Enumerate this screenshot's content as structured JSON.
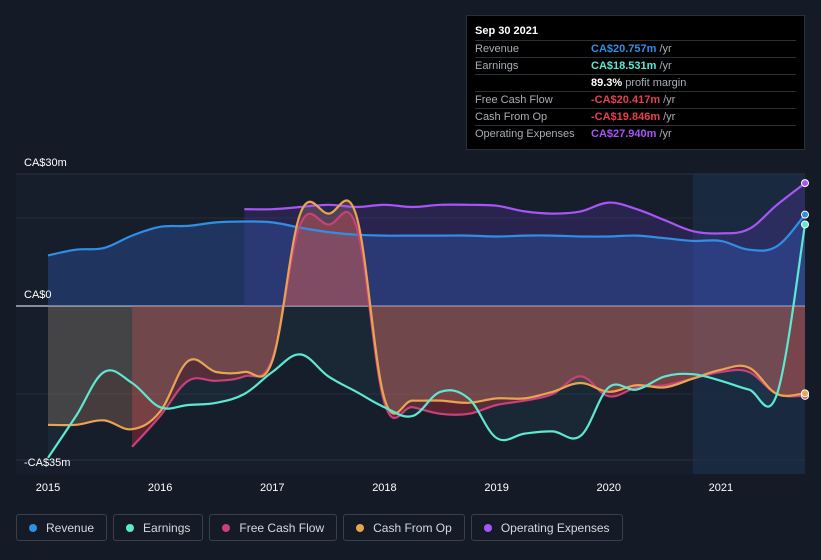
{
  "tooltip": {
    "date": "Sep 30 2021",
    "rows": [
      {
        "label": "Revenue",
        "value": "CA$20.757m",
        "unit": "/yr",
        "color": "#2f8fe6"
      },
      {
        "label": "Earnings",
        "value": "CA$18.531m",
        "unit": "/yr",
        "color": "#5ee8d0"
      },
      {
        "label": "",
        "value": "89.3%",
        "unit": "profit margin",
        "color": "#ffffff"
      },
      {
        "label": "Free Cash Flow",
        "value": "-CA$20.417m",
        "unit": "/yr",
        "color": "#e6404e"
      },
      {
        "label": "Cash From Op",
        "value": "-CA$19.846m",
        "unit": "/yr",
        "color": "#e6404e"
      },
      {
        "label": "Operating Expenses",
        "value": "CA$27.940m",
        "unit": "/yr",
        "color": "#a855f7"
      }
    ]
  },
  "legend": [
    {
      "label": "Revenue",
      "color": "#2f8fe6"
    },
    {
      "label": "Earnings",
      "color": "#5ee8d0"
    },
    {
      "label": "Free Cash Flow",
      "color": "#c8417a"
    },
    {
      "label": "Cash From Op",
      "color": "#e9a452"
    },
    {
      "label": "Operating Expenses",
      "color": "#a855f7"
    }
  ],
  "chart_data": {
    "type": "line",
    "y_labels": [
      {
        "text": "CA$30m",
        "value": 30
      },
      {
        "text": "CA$0",
        "value": 0
      },
      {
        "text": "-CA$35m",
        "value": -35
      }
    ],
    "ylim": [
      -35,
      30
    ],
    "xlim": [
      2015,
      2021.75
    ],
    "x_ticks": [
      "2015",
      "2016",
      "2017",
      "2018",
      "2019",
      "2020",
      "2021"
    ],
    "grid": true,
    "series": [
      {
        "name": "Revenue",
        "color": "#2f8fe6",
        "x": [
          2015.0,
          2015.25,
          2015.5,
          2015.75,
          2016.0,
          2016.25,
          2016.5,
          2016.75,
          2017.0,
          2017.25,
          2017.5,
          2017.75,
          2018.0,
          2018.25,
          2018.5,
          2018.75,
          2019.0,
          2019.25,
          2019.5,
          2019.75,
          2020.0,
          2020.25,
          2020.5,
          2020.75,
          2021.0,
          2021.25,
          2021.5,
          2021.75
        ],
        "values": [
          11.5,
          12.8,
          13.2,
          16.0,
          18.0,
          18.2,
          19.0,
          19.2,
          19.0,
          17.8,
          16.8,
          16.2,
          16.0,
          16.0,
          16.0,
          16.0,
          15.8,
          16.0,
          16.0,
          15.8,
          15.8,
          16.0,
          15.4,
          14.8,
          14.8,
          12.8,
          13.6,
          20.757
        ]
      },
      {
        "name": "Earnings",
        "color": "#5ee8d0",
        "x": [
          2015.0,
          2015.25,
          2015.5,
          2015.75,
          2016.0,
          2016.25,
          2016.5,
          2016.75,
          2017.0,
          2017.25,
          2017.5,
          2017.75,
          2018.0,
          2018.25,
          2018.5,
          2018.75,
          2019.0,
          2019.25,
          2019.5,
          2019.75,
          2020.0,
          2020.25,
          2020.5,
          2020.75,
          2021.0,
          2021.25,
          2021.5,
          2021.75
        ],
        "values": [
          -34.5,
          -25.0,
          -15.0,
          -17.5,
          -23.0,
          -22.5,
          -22.0,
          -20.0,
          -15.0,
          -11.0,
          -16.0,
          -19.5,
          -23.0,
          -25.0,
          -19.5,
          -21.0,
          -30.0,
          -29.0,
          -28.5,
          -29.5,
          -18.5,
          -19.0,
          -16.0,
          -15.5,
          -17.0,
          -19.0,
          -20.0,
          18.531
        ]
      },
      {
        "name": "Free Cash Flow",
        "color": "#c8417a",
        "x": [
          2015.75,
          2016.0,
          2016.25,
          2016.5,
          2016.75,
          2017.0,
          2017.25,
          2017.5,
          2017.75,
          2018.0,
          2018.25,
          2018.5,
          2018.75,
          2019.0,
          2019.25,
          2019.5,
          2019.75,
          2020.0,
          2020.25,
          2020.5,
          2020.75,
          2021.0,
          2021.25,
          2021.5,
          2021.75
        ],
        "values": [
          -32.0,
          -25.0,
          -17.0,
          -17.0,
          -16.0,
          -12.0,
          18.5,
          18.5,
          18.0,
          -22.0,
          -23.0,
          -24.5,
          -24.5,
          -22.5,
          -21.5,
          -20.0,
          -16.0,
          -20.5,
          -18.5,
          -18.0,
          -16.5,
          -15.0,
          -15.0,
          -20.0,
          -20.417
        ]
      },
      {
        "name": "Cash From Op",
        "color": "#e9a452",
        "x": [
          2015.0,
          2015.25,
          2015.5,
          2015.75,
          2016.0,
          2016.25,
          2016.5,
          2016.75,
          2017.0,
          2017.25,
          2017.5,
          2017.75,
          2018.0,
          2018.25,
          2018.5,
          2018.75,
          2019.0,
          2019.25,
          2019.5,
          2019.75,
          2020.0,
          2020.25,
          2020.5,
          2020.75,
          2021.0,
          2021.25,
          2021.5,
          2021.75
        ],
        "values": [
          -27.0,
          -27.0,
          -26.0,
          -28.0,
          -24.0,
          -12.5,
          -15.0,
          -15.0,
          -12.5,
          21.0,
          21.0,
          20.5,
          -21.0,
          -21.5,
          -21.5,
          -22.0,
          -21.0,
          -21.0,
          -19.5,
          -17.5,
          -19.5,
          -18.0,
          -18.5,
          -16.5,
          -14.5,
          -14.0,
          -20.0,
          -19.846
        ]
      },
      {
        "name": "Operating Expenses",
        "color": "#a855f7",
        "x": [
          2016.75,
          2017.0,
          2017.25,
          2017.5,
          2017.75,
          2018.0,
          2018.25,
          2018.5,
          2018.75,
          2019.0,
          2019.25,
          2019.5,
          2019.75,
          2020.0,
          2020.25,
          2020.5,
          2020.75,
          2021.0,
          2021.25,
          2021.5,
          2021.75
        ],
        "values": [
          22.0,
          22.0,
          22.5,
          23.0,
          22.5,
          23.0,
          22.5,
          23.0,
          23.0,
          22.8,
          21.5,
          21.0,
          21.5,
          23.5,
          22.0,
          19.5,
          17.0,
          16.5,
          17.5,
          23.0,
          27.94
        ]
      }
    ]
  }
}
